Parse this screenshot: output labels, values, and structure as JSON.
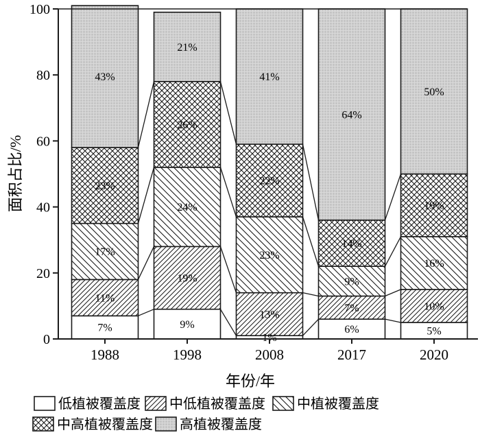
{
  "figure": {
    "background": "#ffffff",
    "ink_color": "#1a1a1a",
    "gray_fill": "#c5c5c5",
    "gray_grid": "#dadada"
  },
  "chart_data": {
    "type": "bar",
    "stacked": true,
    "title": "",
    "xlabel": "年份/年",
    "ylabel": "面积占比/%",
    "ylim": [
      0,
      100
    ],
    "yticks": [
      0,
      20,
      40,
      60,
      80,
      100
    ],
    "categories": [
      "1988",
      "1998",
      "2008",
      "2017",
      "2020"
    ],
    "series": [
      {
        "name": "低植被覆盖度",
        "pattern": "plain",
        "values": [
          7,
          9,
          1,
          6,
          5
        ]
      },
      {
        "name": "中低植被覆盖度",
        "pattern": "diagonal-forward",
        "values": [
          11,
          19,
          13,
          7,
          10
        ]
      },
      {
        "name": "中植被覆盖度",
        "pattern": "diagonal-back",
        "values": [
          17,
          24,
          23,
          9,
          16
        ]
      },
      {
        "name": "中高植被覆盖度",
        "pattern": "crosshatch",
        "values": [
          23,
          26,
          22,
          14,
          19
        ]
      },
      {
        "name": "高植被覆盖度",
        "pattern": "gray-dotted",
        "values": [
          43,
          21,
          41,
          64,
          50
        ]
      }
    ],
    "bar_label_suffix": "%",
    "connectors": true,
    "grid": false,
    "legend_position": "bottom",
    "legend_rows": [
      [
        0,
        1,
        2
      ],
      [
        3,
        4
      ]
    ]
  }
}
